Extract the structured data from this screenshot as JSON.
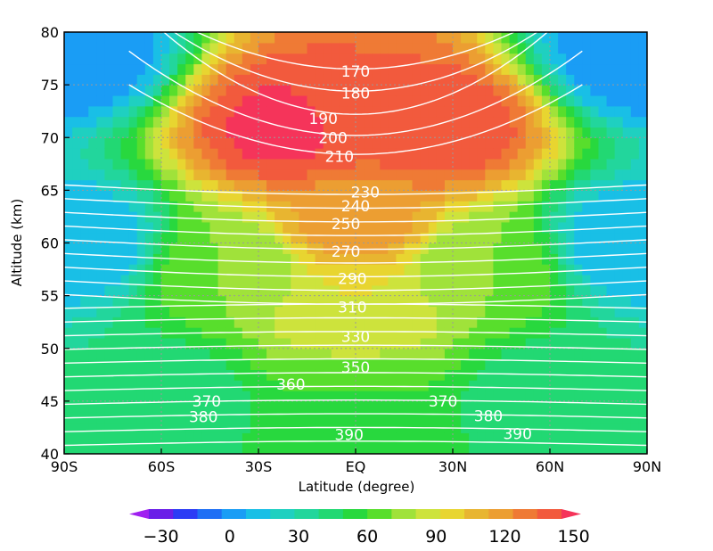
{
  "chart_data": {
    "type": "heatmap",
    "title": "",
    "xlabel": "Latitude (degree)",
    "ylabel": "Altitude (km)",
    "xlim": [
      -90,
      90
    ],
    "ylim": [
      40,
      80
    ],
    "x_ticks": [
      {
        "value": -90,
        "label": "90S"
      },
      {
        "value": -60,
        "label": "60S"
      },
      {
        "value": -30,
        "label": "30S"
      },
      {
        "value": 0,
        "label": "EQ"
      },
      {
        "value": 30,
        "label": "30N"
      },
      {
        "value": 60,
        "label": "60N"
      },
      {
        "value": 90,
        "label": "90N"
      }
    ],
    "y_ticks": [
      {
        "value": 40,
        "label": "40"
      },
      {
        "value": 45,
        "label": "45"
      },
      {
        "value": 50,
        "label": "50"
      },
      {
        "value": 55,
        "label": "55"
      },
      {
        "value": 60,
        "label": "60"
      },
      {
        "value": 65,
        "label": "65"
      },
      {
        "value": 70,
        "label": "70"
      },
      {
        "value": 75,
        "label": "75"
      },
      {
        "value": 80,
        "label": "80"
      }
    ],
    "grid": "dotted at major ticks",
    "shaded_field": {
      "levels": [
        -40,
        -30,
        -20,
        -10,
        0,
        10,
        20,
        30,
        40,
        50,
        60,
        70,
        80,
        90,
        100,
        110,
        120,
        130,
        140,
        150,
        160
      ],
      "colors": [
        "#a020f0",
        "#6a1fe8",
        "#2c3cf5",
        "#1f6ff5",
        "#1a9df5",
        "#19bfe6",
        "#1fd0c0",
        "#22d69c",
        "#22d873",
        "#28d83e",
        "#58de2c",
        "#a0e23a",
        "#cde33c",
        "#e8d530",
        "#e8b530",
        "#ec9e32",
        "#ef7a35",
        "#f25a3d",
        "#f5345a"
      ],
      "colorbar_ticks": [
        {
          "value": -30,
          "label": "−30"
        },
        {
          "value": 0,
          "label": "0"
        },
        {
          "value": 30,
          "label": "30"
        },
        {
          "value": 60,
          "label": "60"
        },
        {
          "value": 90,
          "label": "90"
        },
        {
          "value": 120,
          "label": "120"
        },
        {
          "value": 150,
          "label": "150"
        }
      ],
      "approx_values": [
        {
          "latitude": -20,
          "altitude": 71,
          "value": 145
        },
        {
          "latitude": 25,
          "altitude": 71,
          "value": 140
        },
        {
          "latitude": 0,
          "altitude": 72,
          "value": 130
        },
        {
          "latitude": 0,
          "altitude": 62,
          "value": 115
        },
        {
          "latitude": 0,
          "altitude": 53,
          "value": 90
        },
        {
          "latitude": 0,
          "altitude": 45,
          "value": 60
        },
        {
          "latitude": 0,
          "altitude": 41,
          "value": 55
        },
        {
          "latitude": -40,
          "altitude": 58,
          "value": 70
        },
        {
          "latitude": 40,
          "altitude": 58,
          "value": 70
        },
        {
          "latitude": -60,
          "altitude": 45,
          "value": 40
        },
        {
          "latitude": 60,
          "altitude": 45,
          "value": 40
        },
        {
          "latitude": -85,
          "altitude": 60,
          "value": 10
        },
        {
          "latitude": 85,
          "altitude": 60,
          "value": 10
        },
        {
          "latitude": -88,
          "altitude": 78,
          "value": 0
        },
        {
          "latitude": 88,
          "altitude": 78,
          "value": 0
        }
      ]
    },
    "contours": {
      "color": "#ffffff",
      "labels": [
        {
          "text": "170",
          "latitude": 0,
          "altitude": 76.3
        },
        {
          "text": "180",
          "latitude": 0,
          "altitude": 74.2
        },
        {
          "text": "190",
          "latitude": -10,
          "altitude": 71.8
        },
        {
          "text": "200",
          "latitude": -7,
          "altitude": 70.0
        },
        {
          "text": "210",
          "latitude": -5,
          "altitude": 68.2
        },
        {
          "text": "230",
          "latitude": 3,
          "altitude": 64.8
        },
        {
          "text": "240",
          "latitude": 0,
          "altitude": 63.5
        },
        {
          "text": "250",
          "latitude": -3,
          "altitude": 61.8
        },
        {
          "text": "270",
          "latitude": -3,
          "altitude": 59.2
        },
        {
          "text": "290",
          "latitude": -1,
          "altitude": 56.6
        },
        {
          "text": "310",
          "latitude": -1,
          "altitude": 53.9
        },
        {
          "text": "330",
          "latitude": 0,
          "altitude": 51.1
        },
        {
          "text": "350",
          "latitude": 0,
          "altitude": 48.2
        },
        {
          "text": "360",
          "latitude": -20,
          "altitude": 46.6
        },
        {
          "text": "370",
          "latitude": -46,
          "altitude": 45.0
        },
        {
          "text": "370",
          "latitude": 27,
          "altitude": 45.0
        },
        {
          "text": "380",
          "latitude": -47,
          "altitude": 43.5
        },
        {
          "text": "380",
          "latitude": 41,
          "altitude": 43.6
        },
        {
          "text": "390",
          "latitude": -2,
          "altitude": 41.8
        },
        {
          "text": "390",
          "latitude": 50,
          "altitude": 41.9
        }
      ]
    }
  }
}
